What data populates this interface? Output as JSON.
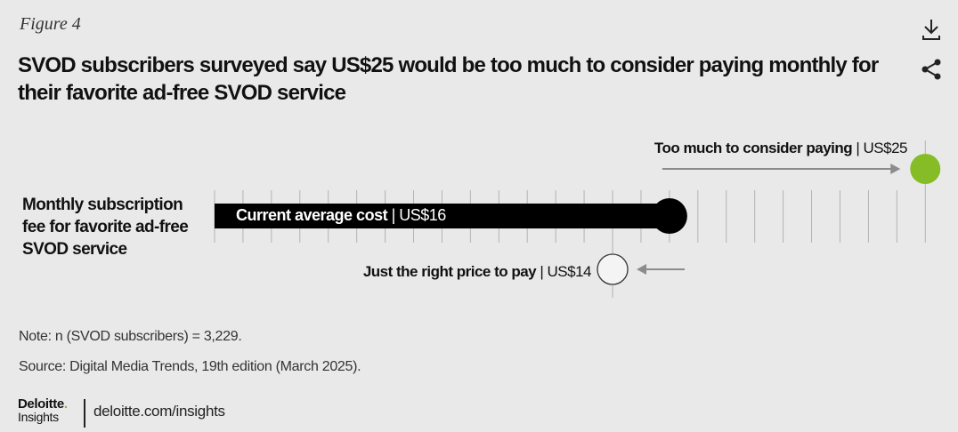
{
  "figure_label": "Figure 4",
  "title": "SVOD subscribers surveyed say US$25 would be too much to consider paying monthly for their favorite ad-free SVOD service",
  "icons": {
    "download": "download-icon",
    "share": "share-icon"
  },
  "colors": {
    "bar": "#000000",
    "high_marker": "#86bc25",
    "low_marker": "#f4f4f4",
    "tick": "#b3b3b3",
    "arrow": "#8c8c8c"
  },
  "chart_data": {
    "type": "bar",
    "orientation": "horizontal",
    "category_label": "Monthly subscription fee for favorite ad-free SVOD service",
    "xlim": [
      0,
      25
    ],
    "tick_step": 1,
    "grid": true,
    "series": [
      {
        "bold": "Current average cost",
        "separator": " | ",
        "value_text": "US$16",
        "value": 16,
        "mark": "bar"
      },
      {
        "bold": "Too much to consider paying",
        "separator": " | ",
        "value_text": "US$25",
        "value": 25,
        "mark": "dot"
      },
      {
        "bold": "Just the right price to pay",
        "separator": " | ",
        "value_text": "US$14",
        "value": 14,
        "mark": "dot"
      }
    ]
  },
  "note": "Note: n (SVOD subscribers) = 3,229.",
  "source": "Source: Digital Media Trends, 19th edition (March 2025).",
  "logo": {
    "brand": "Deloitte",
    "dot": ".",
    "sub": "Insights"
  },
  "site": "deloitte.com/insights"
}
